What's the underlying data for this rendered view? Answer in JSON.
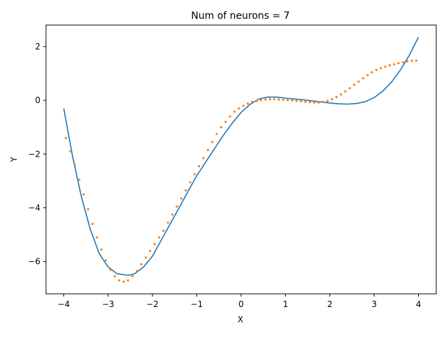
{
  "chart_data": {
    "type": "line",
    "title": "Num of neurons = 7",
    "xlabel": "X",
    "ylabel": "Y",
    "xlim": [
      -4.4,
      4.4
    ],
    "ylim": [
      -7.2,
      2.8
    ],
    "xticks": [
      -4,
      -3,
      -2,
      -1,
      0,
      1,
      2,
      3,
      4
    ],
    "xtick_labels": [
      "−4",
      "−3",
      "−2",
      "−1",
      "0",
      "1",
      "2",
      "3",
      "4"
    ],
    "yticks": [
      -6,
      -4,
      -2,
      0,
      2
    ],
    "ytick_labels": [
      "−6",
      "−4",
      "−2",
      "0",
      "2"
    ],
    "grid": false,
    "legend": "none",
    "series": [
      {
        "style": "line",
        "color": "#1f77b4",
        "x": [
          -4.0,
          -3.8,
          -3.6,
          -3.4,
          -3.2,
          -3.0,
          -2.8,
          -2.6,
          -2.5,
          -2.4,
          -2.2,
          -2.0,
          -1.8,
          -1.6,
          -1.4,
          -1.2,
          -1.0,
          -0.8,
          -0.6,
          -0.4,
          -0.2,
          0.0,
          0.2,
          0.4,
          0.6,
          0.8,
          1.0,
          1.2,
          1.4,
          1.6,
          1.8,
          2.0,
          2.2,
          2.4,
          2.6,
          2.8,
          3.0,
          3.2,
          3.4,
          3.6,
          3.8,
          4.0
        ],
        "y": [
          -0.3,
          -2.1,
          -3.6,
          -4.8,
          -5.7,
          -6.2,
          -6.45,
          -6.5,
          -6.5,
          -6.45,
          -6.2,
          -5.8,
          -5.2,
          -4.6,
          -4.0,
          -3.4,
          -2.8,
          -2.3,
          -1.8,
          -1.3,
          -0.85,
          -0.45,
          -0.15,
          0.05,
          0.12,
          0.12,
          0.08,
          0.05,
          0.02,
          -0.02,
          -0.06,
          -0.1,
          -0.13,
          -0.14,
          -0.12,
          -0.05,
          0.1,
          0.35,
          0.7,
          1.15,
          1.7,
          2.35
        ]
      },
      {
        "style": "scatter",
        "color": "#ff7f0e",
        "x": [
          -3.95,
          -3.85,
          -3.75,
          -3.65,
          -3.55,
          -3.45,
          -3.35,
          -3.25,
          -3.15,
          -3.05,
          -2.95,
          -2.85,
          -2.75,
          -2.65,
          -2.55,
          -2.45,
          -2.35,
          -2.25,
          -2.15,
          -2.05,
          -1.95,
          -1.85,
          -1.75,
          -1.65,
          -1.55,
          -1.45,
          -1.35,
          -1.25,
          -1.15,
          -1.05,
          -0.95,
          -0.85,
          -0.75,
          -0.65,
          -0.55,
          -0.45,
          -0.35,
          -0.25,
          -0.15,
          -0.05,
          0.05,
          0.15,
          0.25,
          0.35,
          0.45,
          0.55,
          0.65,
          0.75,
          0.85,
          0.95,
          1.05,
          1.15,
          1.25,
          1.35,
          1.45,
          1.55,
          1.65,
          1.75,
          1.85,
          1.95,
          2.05,
          2.15,
          2.25,
          2.35,
          2.45,
          2.55,
          2.65,
          2.75,
          2.85,
          2.95,
          3.05,
          3.15,
          3.25,
          3.35,
          3.45,
          3.55,
          3.65,
          3.75,
          3.85,
          3.95
        ],
        "y": [
          -1.4,
          -1.9,
          -2.4,
          -2.95,
          -3.5,
          -4.05,
          -4.6,
          -5.1,
          -5.55,
          -5.95,
          -6.3,
          -6.55,
          -6.7,
          -6.75,
          -6.7,
          -6.55,
          -6.35,
          -6.1,
          -5.85,
          -5.6,
          -5.35,
          -5.1,
          -4.85,
          -4.55,
          -4.25,
          -3.95,
          -3.65,
          -3.35,
          -3.05,
          -2.75,
          -2.45,
          -2.15,
          -1.85,
          -1.55,
          -1.25,
          -1.0,
          -0.8,
          -0.6,
          -0.42,
          -0.3,
          -0.2,
          -0.12,
          -0.06,
          -0.02,
          0.01,
          0.03,
          0.04,
          0.04,
          0.03,
          0.02,
          0.01,
          0.0,
          -0.02,
          -0.04,
          -0.06,
          -0.07,
          -0.08,
          -0.08,
          -0.06,
          -0.02,
          0.04,
          0.12,
          0.22,
          0.33,
          0.45,
          0.58,
          0.7,
          0.82,
          0.94,
          1.04,
          1.13,
          1.2,
          1.25,
          1.3,
          1.34,
          1.38,
          1.42,
          1.45,
          1.47,
          1.48
        ]
      }
    ]
  }
}
